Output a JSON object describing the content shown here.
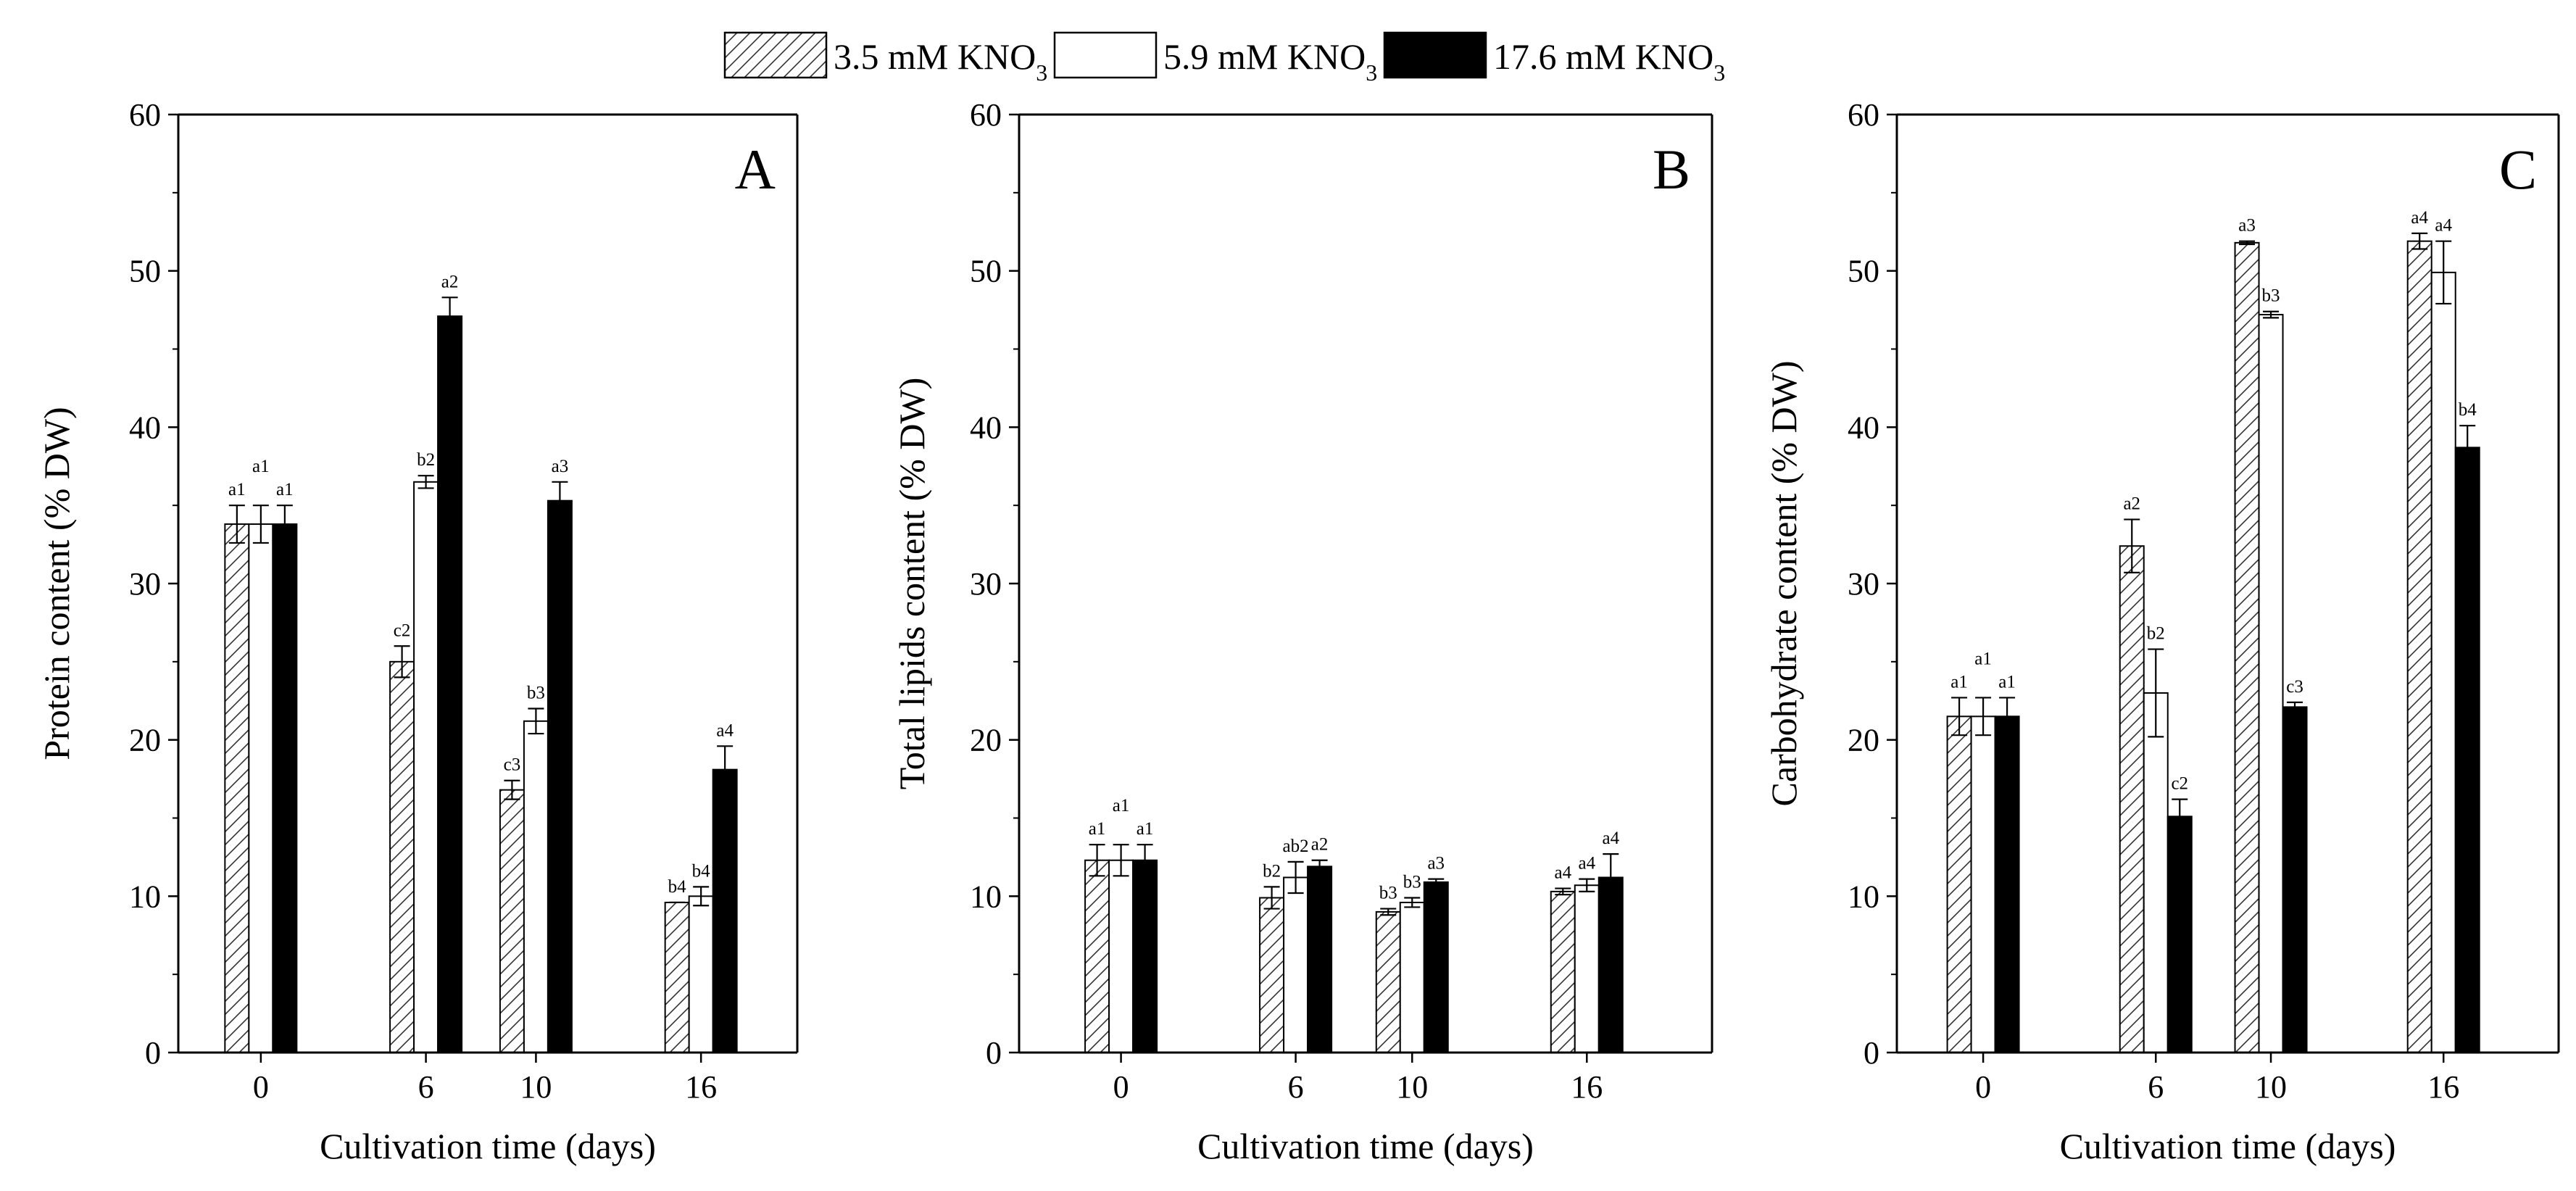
{
  "legend": [
    {
      "main": "3.5 mM KNO",
      "sub": "3",
      "pattern": "hatch"
    },
    {
      "main": "5.9 mM KNO",
      "sub": "3",
      "pattern": "white"
    },
    {
      "main": "17.6 mM KNO",
      "sub": "3",
      "pattern": "black"
    }
  ],
  "colors": {
    "axis": "#000000",
    "hatch_fill": "#ffffff",
    "solid_fill": "#000000",
    "background": "#ffffff"
  },
  "chart_data": [
    {
      "type": "bar",
      "panel": "A",
      "ylabel": "Protein content (% DW)",
      "xlabel": "Cultivation time (days)",
      "ylim": [
        0,
        60
      ],
      "yticks": [
        0,
        10,
        20,
        30,
        40,
        50,
        60
      ],
      "x": [
        0,
        6,
        10,
        16
      ],
      "categories": [
        "0",
        "6",
        "10",
        "16"
      ],
      "series": [
        {
          "name": "3.5 mM KNO3",
          "values": [
            33.8,
            25.0,
            16.8,
            9.6
          ],
          "errors": [
            1.2,
            1.0,
            0.6,
            0.0
          ],
          "labels": [
            "a1",
            "c2",
            "c3",
            "b4"
          ]
        },
        {
          "name": "5.9 mM KNO3",
          "values": [
            33.8,
            36.5,
            21.2,
            10.0
          ],
          "errors": [
            1.2,
            0.4,
            0.8,
            0.6
          ],
          "labels": [
            "a1",
            "b2",
            "b3",
            "b4"
          ]
        },
        {
          "name": "17.6 mM KNO3",
          "values": [
            33.8,
            47.1,
            35.3,
            18.1
          ],
          "errors": [
            1.2,
            1.2,
            1.2,
            1.5
          ],
          "labels": [
            "a1",
            "a2",
            "a3",
            "a4"
          ]
        }
      ]
    },
    {
      "type": "bar",
      "panel": "B",
      "ylabel": "Total lipids content (% DW)",
      "xlabel": "Cultivation time (days)",
      "ylim": [
        0,
        60
      ],
      "yticks": [
        0,
        10,
        20,
        30,
        40,
        50,
        60
      ],
      "x": [
        0,
        6,
        10,
        16
      ],
      "categories": [
        "0",
        "6",
        "10",
        "16"
      ],
      "series": [
        {
          "name": "3.5 mM KNO3",
          "values": [
            12.3,
            9.9,
            9.0,
            10.3
          ],
          "errors": [
            1.0,
            0.7,
            0.2,
            0.2
          ],
          "labels": [
            "a1",
            "b2",
            "b3",
            "a4"
          ]
        },
        {
          "name": "5.9 mM KNO3",
          "values": [
            12.3,
            11.2,
            9.6,
            10.7
          ],
          "errors": [
            1.0,
            1.0,
            0.3,
            0.4
          ],
          "labels": [
            "a1",
            "ab2",
            "b3",
            "a4"
          ]
        },
        {
          "name": "17.6 mM KNO3",
          "values": [
            12.3,
            11.9,
            10.9,
            11.2
          ],
          "errors": [
            1.0,
            0.4,
            0.2,
            1.5
          ],
          "labels": [
            "a1",
            "a2",
            "a3",
            "a4"
          ]
        }
      ]
    },
    {
      "type": "bar",
      "panel": "C",
      "ylabel": "Carbohydrate content (% DW)",
      "xlabel": "Cultivation time (days)",
      "ylim": [
        0,
        60
      ],
      "yticks": [
        0,
        10,
        20,
        30,
        40,
        50,
        60
      ],
      "x": [
        0,
        6,
        10,
        16
      ],
      "categories": [
        "0",
        "6",
        "10",
        "16"
      ],
      "series": [
        {
          "name": "3.5 mM KNO3",
          "values": [
            21.5,
            32.4,
            51.8,
            51.9
          ],
          "errors": [
            1.2,
            1.7,
            0.1,
            0.5
          ],
          "labels": [
            "a1",
            "a2",
            "a3",
            "a4"
          ]
        },
        {
          "name": "5.9 mM KNO3",
          "values": [
            21.5,
            23.0,
            47.2,
            49.9
          ],
          "errors": [
            1.2,
            2.8,
            0.2,
            2.0
          ],
          "labels": [
            "a1",
            "b2",
            "b3",
            "a4"
          ]
        },
        {
          "name": "17.6 mM KNO3",
          "values": [
            21.5,
            15.1,
            22.1,
            38.7
          ],
          "errors": [
            1.2,
            1.1,
            0.3,
            1.4
          ],
          "labels": [
            "a1",
            "c2",
            "c3",
            "b4"
          ]
        }
      ]
    }
  ]
}
